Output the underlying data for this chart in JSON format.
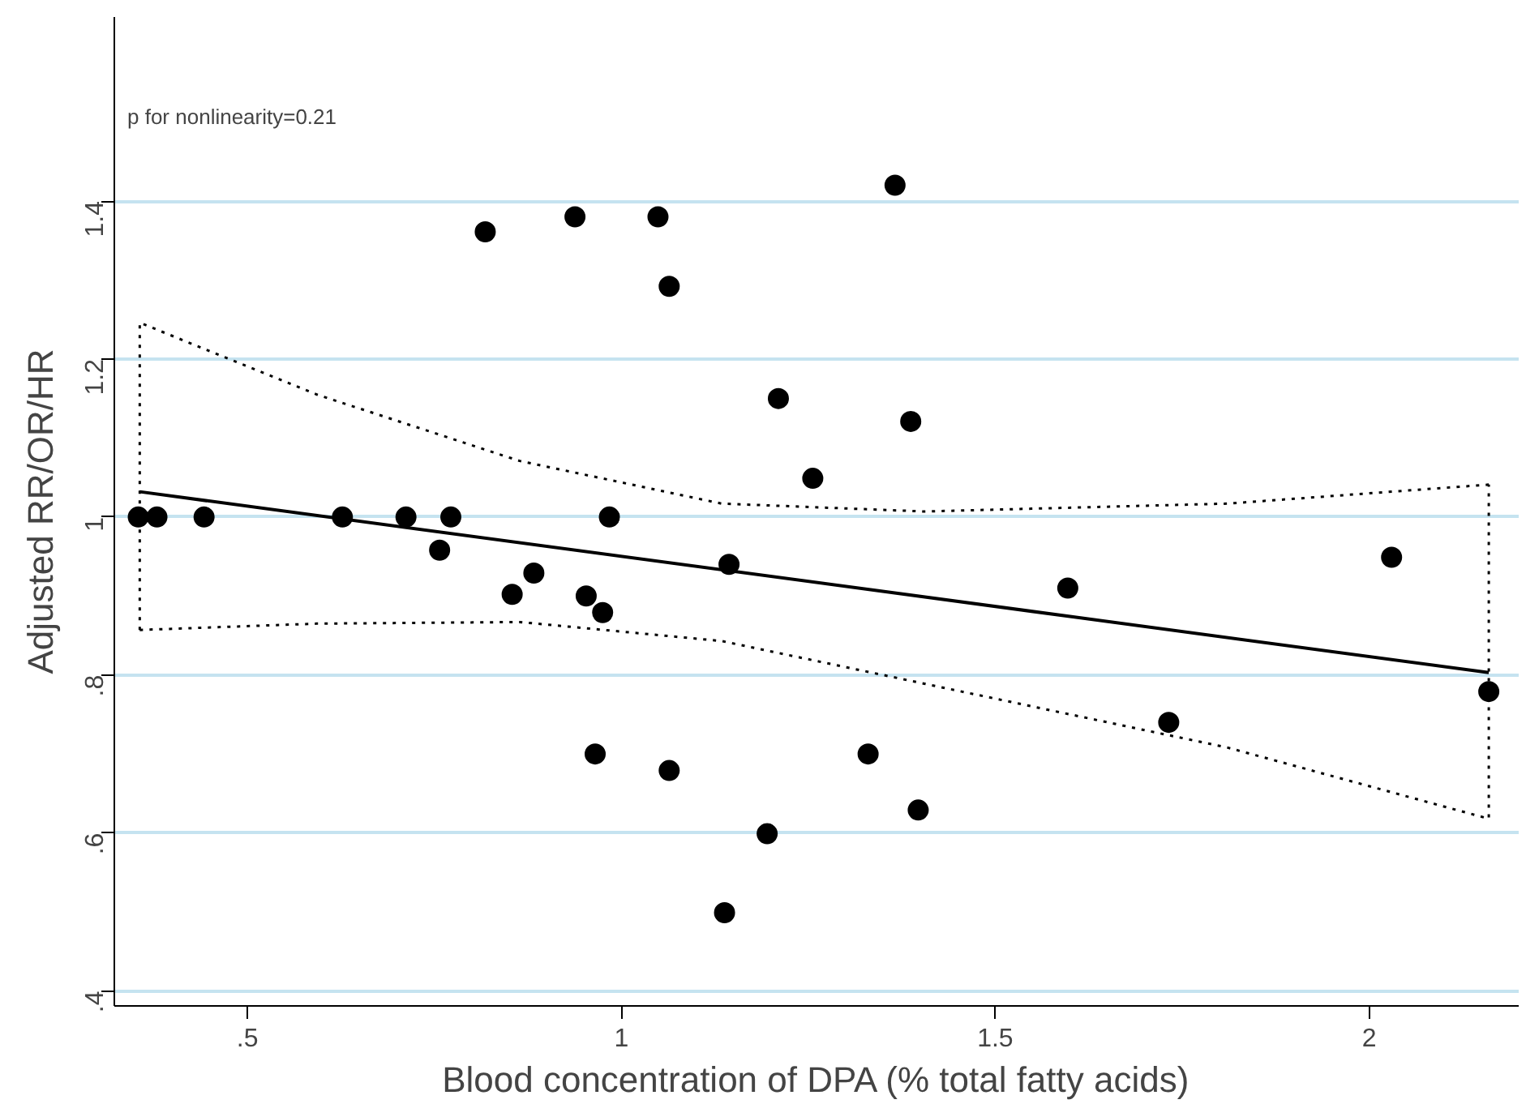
{
  "chart_data": {
    "type": "scatter",
    "xlabel": "Blood concentration of DPA (% total fatty acids)",
    "ylabel": "Adjusted RR/OR/HR",
    "annotations": [
      "p for nonlinearity=0.21"
    ],
    "xlim": [
      0.322,
      2.2
    ],
    "ylim": [
      0.381,
      1.633
    ],
    "xticks": [
      {
        "value": 0.5,
        "label": ".5"
      },
      1,
      {
        "value": 1.5,
        "label": "1.5"
      },
      2
    ],
    "yticks": [
      {
        "value": 0.4,
        "label": ".4"
      },
      {
        "value": 0.6,
        "label": ".6"
      },
      {
        "value": 0.8,
        "label": ".8"
      },
      1,
      {
        "value": 1.2,
        "label": "1.2"
      },
      {
        "value": 1.4,
        "label": "1.4"
      }
    ],
    "grid": "y",
    "marker": "circle",
    "series": [
      {
        "color": "#000000",
        "x": [
          0.354,
          0.379,
          0.442,
          0.627,
          0.712,
          0.772,
          0.984,
          0.757,
          0.883,
          0.854,
          0.953,
          0.975,
          1.144,
          0.818,
          0.938,
          1.049,
          1.064,
          1.366,
          1.21,
          1.387,
          1.256,
          1.597,
          2.03,
          2.16,
          1.732,
          0.965,
          1.064,
          1.33,
          1.397,
          1.195,
          1.138
        ],
        "values": [
          1.0,
          1.0,
          1.0,
          1.0,
          1.0,
          1.0,
          1.0,
          0.958,
          0.929,
          0.902,
          0.9,
          0.879,
          0.94,
          1.361,
          1.38,
          1.38,
          1.292,
          1.42,
          1.15,
          1.121,
          1.049,
          0.91,
          0.949,
          0.779,
          0.74,
          0.7,
          0.679,
          0.7,
          0.629,
          0.599,
          0.499
        ]
      },
      {
        "type": "line",
        "color": "#000000",
        "line_style": "solid",
        "marker": "none",
        "x": [
          0.356,
          2.16
        ],
        "values": [
          1.032,
          0.803
        ]
      },
      {
        "type": "line",
        "color": "#000000",
        "line_style": "dotted",
        "marker": "none",
        "x": [
          0.356,
          0.356,
          0.593,
          0.864,
          1.134,
          1.405,
          1.811,
          2.16
        ],
        "values": [
          0.857,
          1.246,
          1.155,
          1.071,
          1.017,
          1.007,
          1.017,
          1.041
        ]
      },
      {
        "type": "line",
        "color": "#000000",
        "line_style": "dotted",
        "marker": "none",
        "x": [
          0.356,
          0.593,
          0.864,
          1.134,
          1.405,
          1.811,
          2.16,
          2.16
        ],
        "values": [
          0.857,
          0.865,
          0.867,
          0.843,
          0.789,
          0.708,
          0.618,
          1.041
        ]
      }
    ]
  }
}
